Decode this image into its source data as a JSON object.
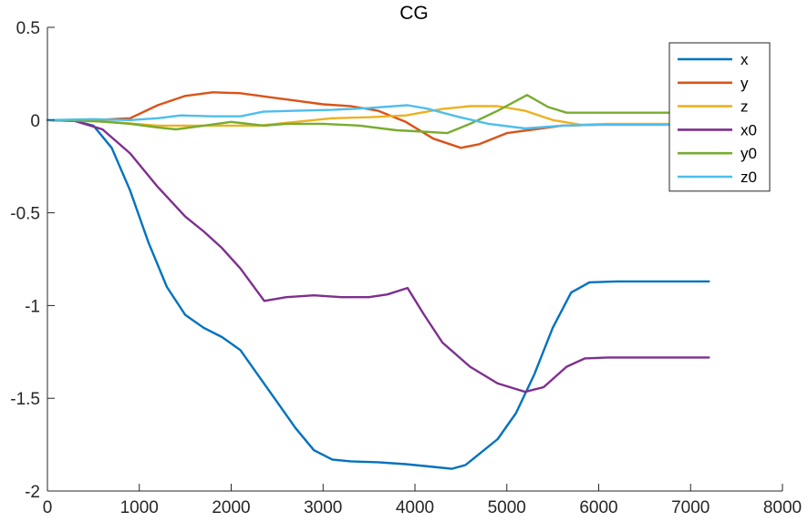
{
  "chart_data": {
    "type": "line",
    "title": "CG",
    "xlabel": "",
    "ylabel": "",
    "xlim": [
      0,
      8000
    ],
    "ylim": [
      -2,
      0.5
    ],
    "xticks": [
      0,
      1000,
      2000,
      3000,
      4000,
      5000,
      6000,
      7000,
      8000
    ],
    "xtick_labels": [
      "0",
      "1000",
      "2000",
      "3000",
      "4000",
      "5000",
      "6000",
      "7000",
      "8000"
    ],
    "yticks": [
      -2,
      -1.5,
      -1,
      -0.5,
      0,
      0.5
    ],
    "ytick_labels": [
      "-2",
      "-1.5",
      "-1",
      "-0.5",
      "0",
      "0.5"
    ],
    "grid": false,
    "legend_position": "top-right",
    "series": [
      {
        "name": "x",
        "color": "#0072BD",
        "points": [
          [
            0,
            0
          ],
          [
            300,
            -0.005
          ],
          [
            500,
            -0.03
          ],
          [
            700,
            -0.15
          ],
          [
            900,
            -0.38
          ],
          [
            1100,
            -0.66
          ],
          [
            1300,
            -0.9
          ],
          [
            1500,
            -1.05
          ],
          [
            1700,
            -1.12
          ],
          [
            1900,
            -1.17
          ],
          [
            2100,
            -1.24
          ],
          [
            2300,
            -1.38
          ],
          [
            2500,
            -1.52
          ],
          [
            2700,
            -1.66
          ],
          [
            2900,
            -1.78
          ],
          [
            3100,
            -1.83
          ],
          [
            3300,
            -1.84
          ],
          [
            3600,
            -1.845
          ],
          [
            3900,
            -1.855
          ],
          [
            4200,
            -1.87
          ],
          [
            4400,
            -1.88
          ],
          [
            4550,
            -1.86
          ],
          [
            4700,
            -1.8
          ],
          [
            4900,
            -1.72
          ],
          [
            5100,
            -1.58
          ],
          [
            5300,
            -1.37
          ],
          [
            5500,
            -1.12
          ],
          [
            5700,
            -0.93
          ],
          [
            5900,
            -0.875
          ],
          [
            6200,
            -0.87
          ],
          [
            7200,
            -0.87
          ]
        ]
      },
      {
        "name": "y",
        "color": "#D95319",
        "points": [
          [
            0,
            0
          ],
          [
            500,
            0
          ],
          [
            900,
            0.01
          ],
          [
            1200,
            0.08
          ],
          [
            1500,
            0.13
          ],
          [
            1800,
            0.15
          ],
          [
            2100,
            0.145
          ],
          [
            2400,
            0.125
          ],
          [
            2700,
            0.105
          ],
          [
            3000,
            0.085
          ],
          [
            3300,
            0.075
          ],
          [
            3600,
            0.05
          ],
          [
            3900,
            -0.01
          ],
          [
            4200,
            -0.1
          ],
          [
            4500,
            -0.15
          ],
          [
            4700,
            -0.13
          ],
          [
            5000,
            -0.07
          ],
          [
            5300,
            -0.05
          ],
          [
            5600,
            -0.03
          ],
          [
            6000,
            -0.025
          ],
          [
            7200,
            -0.025
          ]
        ]
      },
      {
        "name": "z",
        "color": "#EDB120",
        "points": [
          [
            0,
            0
          ],
          [
            700,
            -0.01
          ],
          [
            1200,
            -0.03
          ],
          [
            1800,
            -0.03
          ],
          [
            2300,
            -0.03
          ],
          [
            2800,
            -0.005
          ],
          [
            3100,
            0.01
          ],
          [
            3500,
            0.015
          ],
          [
            3900,
            0.025
          ],
          [
            4300,
            0.06
          ],
          [
            4600,
            0.075
          ],
          [
            4900,
            0.075
          ],
          [
            5200,
            0.05
          ],
          [
            5500,
            0.0
          ],
          [
            5800,
            -0.025
          ],
          [
            6100,
            -0.02
          ],
          [
            7200,
            -0.02
          ]
        ]
      },
      {
        "name": "x0",
        "color": "#7E2F8E",
        "points": [
          [
            0,
            0
          ],
          [
            300,
            -0.005
          ],
          [
            600,
            -0.05
          ],
          [
            900,
            -0.18
          ],
          [
            1200,
            -0.36
          ],
          [
            1500,
            -0.52
          ],
          [
            1700,
            -0.6
          ],
          [
            1900,
            -0.69
          ],
          [
            2100,
            -0.8
          ],
          [
            2360,
            -0.975
          ],
          [
            2600,
            -0.955
          ],
          [
            2900,
            -0.945
          ],
          [
            3200,
            -0.955
          ],
          [
            3500,
            -0.955
          ],
          [
            3700,
            -0.94
          ],
          [
            3920,
            -0.905
          ],
          [
            4100,
            -1.05
          ],
          [
            4300,
            -1.2
          ],
          [
            4600,
            -1.33
          ],
          [
            4900,
            -1.42
          ],
          [
            5200,
            -1.465
          ],
          [
            5400,
            -1.44
          ],
          [
            5650,
            -1.33
          ],
          [
            5850,
            -1.285
          ],
          [
            6100,
            -1.28
          ],
          [
            7200,
            -1.28
          ]
        ]
      },
      {
        "name": "y0",
        "color": "#77AC30",
        "points": [
          [
            0,
            0
          ],
          [
            500,
            -0.005
          ],
          [
            900,
            -0.02
          ],
          [
            1200,
            -0.04
          ],
          [
            1400,
            -0.05
          ],
          [
            1700,
            -0.03
          ],
          [
            2000,
            -0.01
          ],
          [
            2360,
            -0.03
          ],
          [
            2600,
            -0.02
          ],
          [
            3000,
            -0.02
          ],
          [
            3400,
            -0.03
          ],
          [
            3800,
            -0.055
          ],
          [
            4000,
            -0.06
          ],
          [
            4350,
            -0.07
          ],
          [
            4600,
            -0.02
          ],
          [
            4900,
            0.05
          ],
          [
            5220,
            0.135
          ],
          [
            5450,
            0.07
          ],
          [
            5650,
            0.04
          ],
          [
            6000,
            0.04
          ],
          [
            7200,
            0.04
          ]
        ]
      },
      {
        "name": "z0",
        "color": "#4DBEEE",
        "points": [
          [
            0,
            0
          ],
          [
            500,
            0.005
          ],
          [
            900,
            0.0
          ],
          [
            1200,
            0.01
          ],
          [
            1450,
            0.025
          ],
          [
            1800,
            0.02
          ],
          [
            2100,
            0.02
          ],
          [
            2350,
            0.045
          ],
          [
            2700,
            0.05
          ],
          [
            3100,
            0.055
          ],
          [
            3500,
            0.065
          ],
          [
            3920,
            0.08
          ],
          [
            4150,
            0.06
          ],
          [
            4450,
            0.02
          ],
          [
            4800,
            -0.02
          ],
          [
            5200,
            -0.045
          ],
          [
            5600,
            -0.03
          ],
          [
            6000,
            -0.025
          ],
          [
            7200,
            -0.025
          ]
        ]
      }
    ]
  }
}
